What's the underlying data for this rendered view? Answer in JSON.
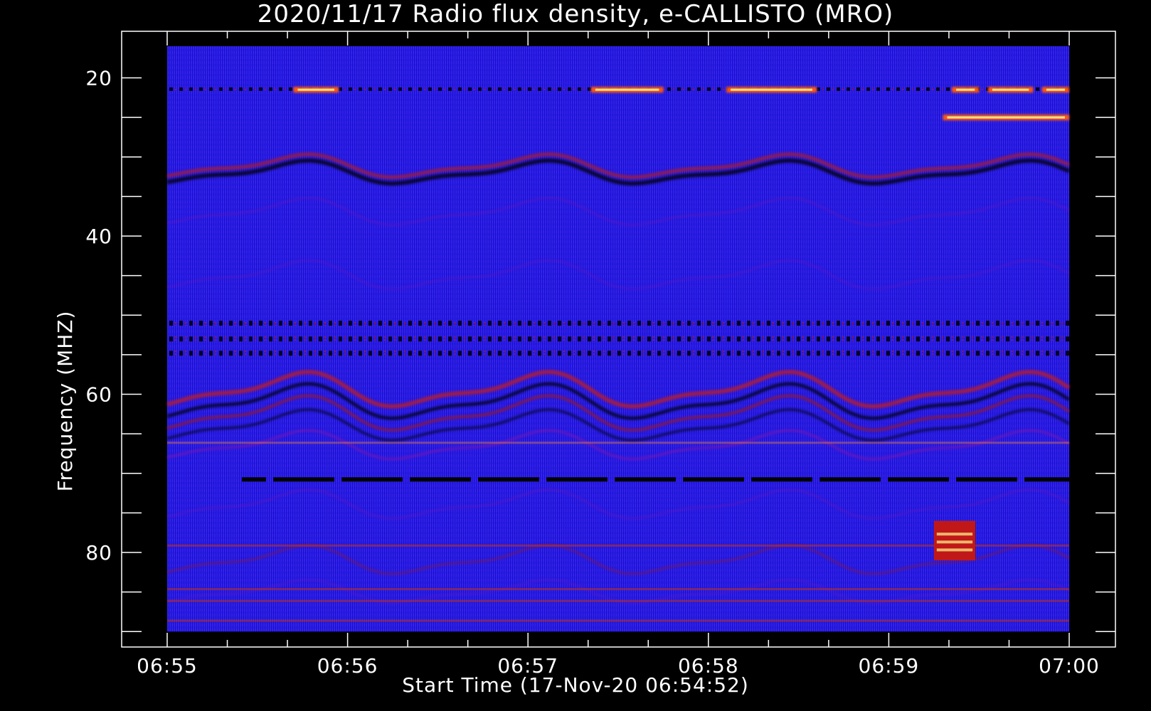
{
  "chart_data": {
    "type": "heatmap",
    "title": "2020/11/17  Radio flux density, e-CALLISTO (MRO)",
    "xlabel": "Start Time (17-Nov-20 06:54:52)",
    "ylabel": "Frequency (MHZ)",
    "x_ticks": [
      "06:55",
      "06:56",
      "06:57",
      "06:58",
      "06:59",
      "07:00"
    ],
    "x_minutes": [
      0,
      1,
      2,
      3,
      4,
      5
    ],
    "y_ticks": [
      20,
      40,
      60,
      80
    ],
    "ylim": [
      92,
      16
    ],
    "data_extent": {
      "x_min": 0,
      "x_max": 5,
      "y_min": 16,
      "y_max": 90
    },
    "colormap": [
      "#000000",
      "#1a10c8",
      "#2b1ef0",
      "#7a18b0",
      "#c01818",
      "#ff5a10",
      "#ffe080",
      "#ffffff"
    ],
    "background_level": "blue",
    "features": [
      {
        "kind": "horizontal_bursts",
        "freq": 21.5,
        "x_ranges": [
          [
            0.7,
            0.95
          ],
          [
            2.35,
            2.75
          ],
          [
            3.1,
            3.6
          ],
          [
            4.35,
            4.5
          ],
          [
            4.55,
            4.8
          ],
          [
            4.85,
            5.0
          ]
        ]
      },
      {
        "kind": "horizontal_bursts",
        "freq": 25,
        "x_ranges": [
          [
            4.3,
            5.0
          ]
        ]
      },
      {
        "kind": "blob",
        "freq_range": [
          76,
          81
        ],
        "x_range": [
          4.25,
          4.48
        ]
      }
    ]
  }
}
